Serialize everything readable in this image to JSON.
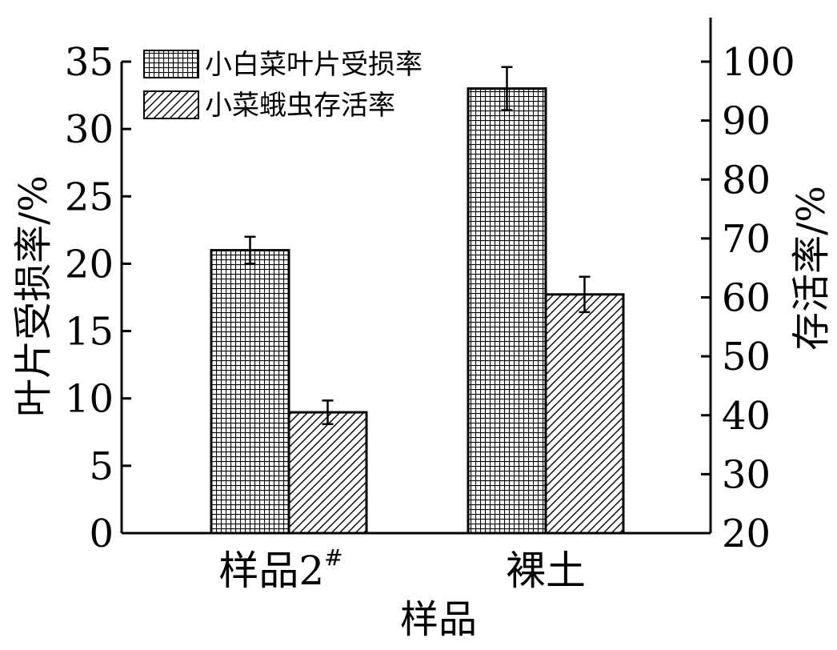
{
  "chart_data": {
    "type": "bar",
    "categories": [
      "样品2",
      "裸土"
    ],
    "category_superscripts": [
      "#",
      ""
    ],
    "xlabel": "样品",
    "ylabel_left": "叶片受损率/%",
    "ylabel_right": "存活率/%",
    "y_left_range": [
      0,
      35
    ],
    "y_left_ticks": [
      0,
      5,
      10,
      15,
      20,
      25,
      30,
      35
    ],
    "y_right_range": [
      20,
      100
    ],
    "y_right_ticks": [
      20,
      30,
      40,
      50,
      60,
      70,
      80,
      90,
      100
    ],
    "grid": false,
    "legend_position": "top-left",
    "series": [
      {
        "name": "小白菜叶片受损率",
        "axis": "left",
        "pattern": "grid",
        "values": [
          21,
          33
        ],
        "errors": [
          1.0,
          1.6
        ]
      },
      {
        "name": "小菜蛾虫存活率",
        "axis": "right",
        "pattern": "diagonal",
        "values": [
          40.5,
          60.5
        ],
        "errors": [
          2.0,
          3.0
        ]
      }
    ]
  }
}
